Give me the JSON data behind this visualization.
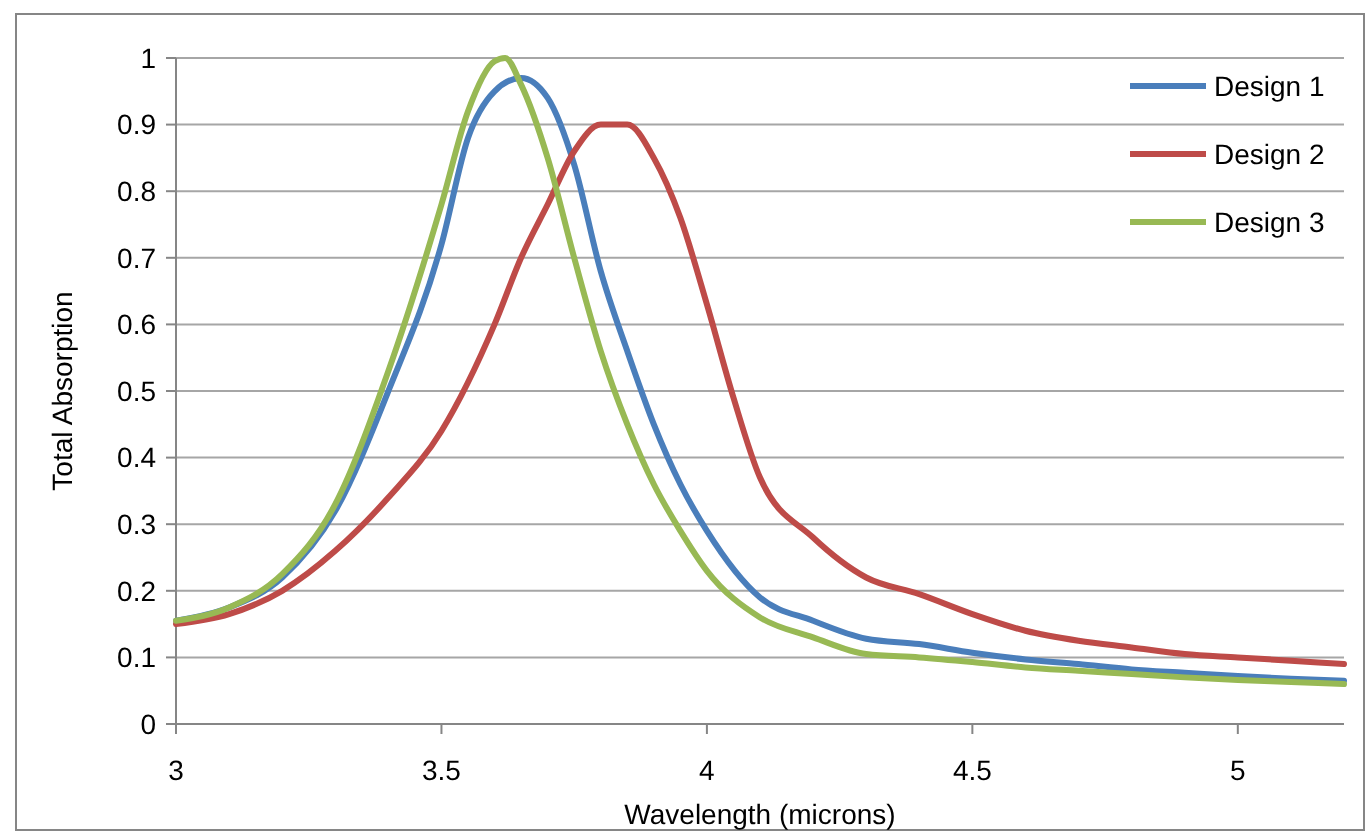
{
  "chart_data": {
    "type": "line",
    "xlabel": "Wavelength (microns)",
    "ylabel": "Total Absorption",
    "xlim": [
      3,
      5.2
    ],
    "xticks": [
      3,
      3.5,
      4,
      4.5,
      5
    ],
    "ylim": [
      0,
      1
    ],
    "yticks": [
      0,
      0.1,
      0.2,
      0.3,
      0.4,
      0.5,
      0.6,
      0.7,
      0.8,
      0.9,
      1
    ],
    "grid": "y",
    "legend": "top right",
    "marker": "none",
    "line_style": "solid",
    "series": [
      {
        "name": "Design 1",
        "color": "#4a7ebb",
        "x": [
          3,
          3.1,
          3.2,
          3.3,
          3.4,
          3.5,
          3.55,
          3.6,
          3.65,
          3.7,
          3.75,
          3.8,
          3.85,
          3.9,
          3.95,
          4,
          4.1,
          4.2,
          4.3,
          4.4,
          4.5,
          4.6,
          4.7,
          4.8,
          4.9,
          5,
          5.1,
          5.2
        ],
        "values": [
          0.155,
          0.175,
          0.22,
          0.32,
          0.5,
          0.72,
          0.88,
          0.95,
          0.97,
          0.94,
          0.84,
          0.68,
          0.56,
          0.45,
          0.36,
          0.29,
          0.19,
          0.155,
          0.128,
          0.12,
          0.107,
          0.097,
          0.09,
          0.082,
          0.077,
          0.072,
          0.068,
          0.065
        ]
      },
      {
        "name": "Design 2",
        "color": "#be4b48",
        "x": [
          3,
          3.1,
          3.2,
          3.3,
          3.4,
          3.5,
          3.6,
          3.65,
          3.7,
          3.75,
          3.8,
          3.85,
          3.9,
          3.95,
          4,
          4.05,
          4.1,
          4.2,
          4.3,
          4.4,
          4.5,
          4.6,
          4.7,
          4.8,
          4.9,
          5,
          5.1,
          5.2
        ],
        "values": [
          0.15,
          0.165,
          0.2,
          0.26,
          0.34,
          0.44,
          0.6,
          0.7,
          0.78,
          0.86,
          0.9,
          0.9,
          0.85,
          0.76,
          0.63,
          0.49,
          0.37,
          0.28,
          0.22,
          0.195,
          0.165,
          0.14,
          0.125,
          0.115,
          0.105,
          0.1,
          0.095,
          0.09
        ]
      },
      {
        "name": "Design 3",
        "color": "#98b954",
        "x": [
          3,
          3.1,
          3.2,
          3.3,
          3.4,
          3.5,
          3.55,
          3.6,
          3.62,
          3.65,
          3.7,
          3.75,
          3.8,
          3.85,
          3.9,
          3.95,
          4,
          4.1,
          4.2,
          4.3,
          4.4,
          4.5,
          4.6,
          4.7,
          4.8,
          4.9,
          5,
          5.1,
          5.2
        ],
        "values": [
          0.155,
          0.175,
          0.225,
          0.33,
          0.53,
          0.78,
          0.92,
          0.995,
          1,
          0.96,
          0.85,
          0.7,
          0.56,
          0.45,
          0.36,
          0.29,
          0.23,
          0.16,
          0.13,
          0.105,
          0.1,
          0.093,
          0.085,
          0.08,
          0.075,
          0.07,
          0.066,
          0.063,
          0.06
        ]
      }
    ]
  }
}
